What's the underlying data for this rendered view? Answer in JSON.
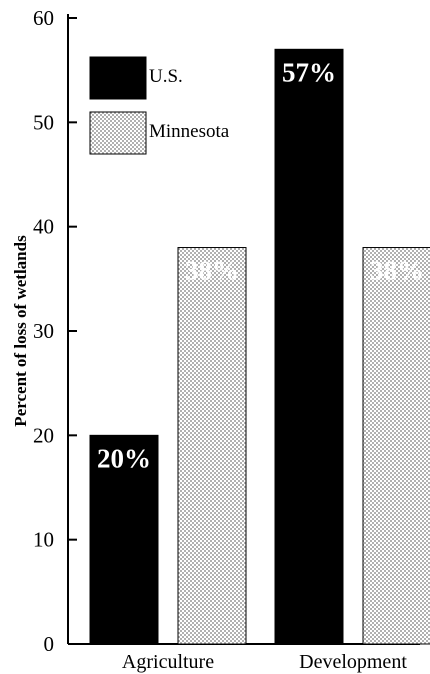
{
  "chart_data": {
    "type": "bar",
    "title": "",
    "xlabel": "",
    "ylabel": "Percent of loss of wetlands",
    "ylim": [
      0,
      60
    ],
    "yticks": [
      0,
      10,
      20,
      30,
      40,
      50,
      60
    ],
    "categories": [
      "Agriculture",
      "Development"
    ],
    "series": [
      {
        "name": "U.S.",
        "values": [
          20,
          57
        ],
        "labels": [
          "20%",
          "57%"
        ],
        "color": "#000000",
        "pattern": "solid"
      },
      {
        "name": "Minnesota",
        "values": [
          38,
          38
        ],
        "labels": [
          "38%",
          "38%"
        ],
        "color": "#b8b8b8",
        "pattern": "stipple"
      }
    ],
    "legend_position": "top-left",
    "grid": false
  }
}
